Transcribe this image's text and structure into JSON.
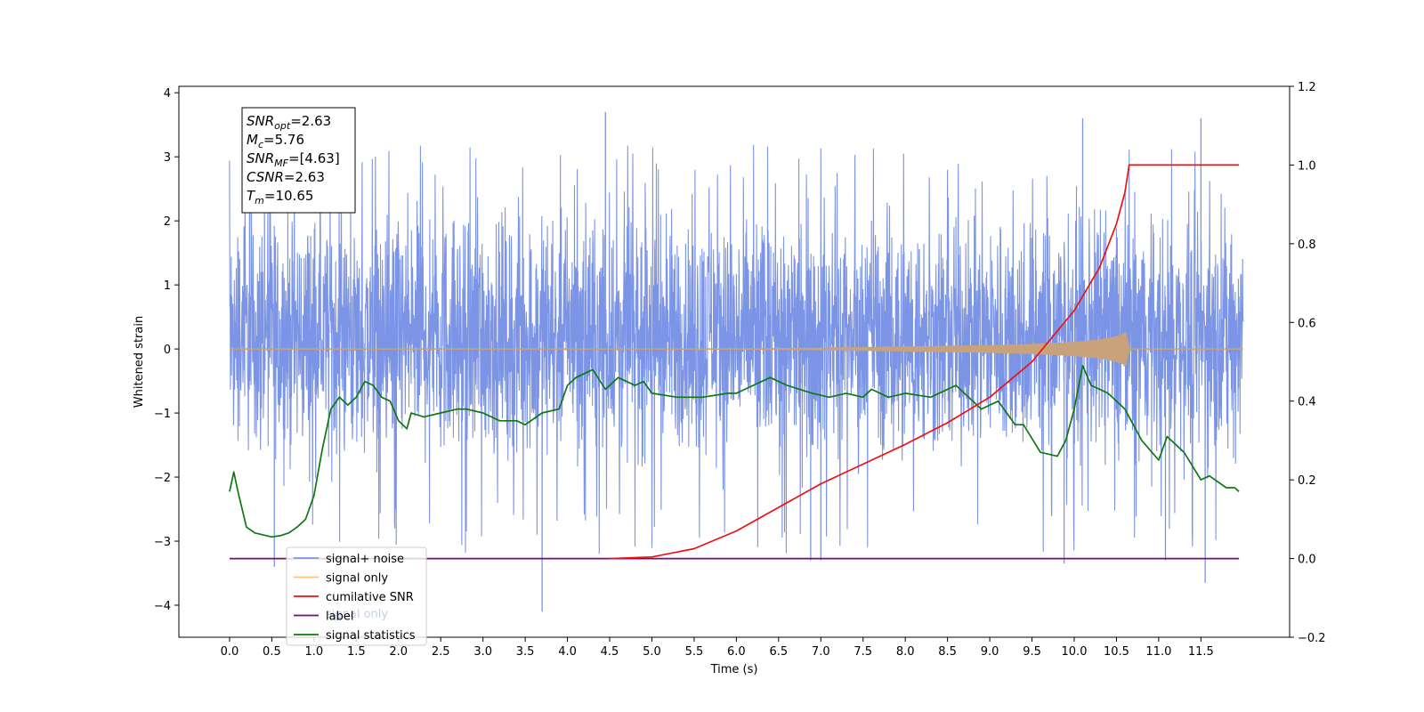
{
  "chart_data": {
    "type": "line",
    "title": "",
    "xlabel": "Time (s)",
    "ylabel": "Whitened strain",
    "xlim": [
      -0.6,
      12.55
    ],
    "ylim": [
      -4.5,
      4.1
    ],
    "y2lim": [
      -0.2,
      1.2
    ],
    "x_ticks": [
      0.0,
      0.5,
      1.0,
      1.5,
      2.0,
      2.5,
      3.0,
      3.5,
      4.0,
      4.5,
      5.0,
      5.5,
      6.0,
      6.5,
      7.0,
      7.5,
      8.0,
      8.5,
      9.0,
      9.5,
      10.0,
      10.5,
      11.0,
      11.5
    ],
    "x_tick_labels": [
      "0.0",
      "0.5",
      "1.0",
      "1.5",
      "2.0",
      "2.5",
      "3.0",
      "3.5",
      "4.0",
      "4.5",
      "5.0",
      "5.5",
      "6.0",
      "6.5",
      "7.0",
      "7.5",
      "8.0",
      "8.5",
      "9.0",
      "9.5",
      "10.0",
      "10.5",
      "11.0",
      "11.5"
    ],
    "y_ticks": [
      -4,
      -3,
      -2,
      -1,
      0,
      1,
      2,
      3,
      4
    ],
    "y_tick_labels": [
      "−4",
      "−3",
      "−2",
      "−1",
      "0",
      "1",
      "2",
      "3",
      "4"
    ],
    "y2_ticks": [
      -0.2,
      0.0,
      0.2,
      0.4,
      0.6,
      0.8,
      1.0,
      1.2
    ],
    "y2_tick_labels": [
      "−0.2",
      "0.0",
      "0.2",
      "0.4",
      "0.6",
      "0.8",
      "1.0",
      "1.2"
    ],
    "grid": false,
    "legend_position": "lower-left",
    "legend_overlap_text": "signal only",
    "annotation": {
      "lines": [
        {
          "base": "SNR",
          "sub": "opt",
          "value": "=2.63"
        },
        {
          "base": "M",
          "sub": "c",
          "value": "=5.76"
        },
        {
          "base": "SNR",
          "sub": "MF",
          "value": "=[4.63]"
        },
        {
          "base": "CSNR",
          "sub": "",
          "value": "=2.63"
        },
        {
          "base": "T",
          "sub": "m",
          "value": "=10.65"
        }
      ]
    },
    "series": [
      {
        "name": "signal+ noise",
        "color": "#7b94e6",
        "axis": "left",
        "kind": "noise",
        "x_range": [
          0.0,
          12.0
        ],
        "typical_range": [
          -1.9,
          2.3
        ],
        "peaks": [
          [
            4.45,
            3.7
          ],
          [
            10.1,
            3.6
          ],
          [
            11.5,
            3.6
          ],
          [
            3.7,
            -4.1
          ],
          [
            11.55,
            -3.65
          ],
          [
            0.53,
            -3.4
          ],
          [
            9.88,
            -3.35
          ],
          [
            11.08,
            -3.3
          ],
          [
            6.88,
            -3.3
          ],
          [
            7.0,
            -3.3
          ]
        ]
      },
      {
        "name": "signal only",
        "color": "#c8a27a",
        "axis": "left",
        "kind": "envelope",
        "x": [
          0.0,
          5.0,
          6.0,
          7.0,
          8.0,
          9.0,
          9.5,
          10.0,
          10.3,
          10.5,
          10.6,
          10.65,
          10.66,
          12.0
        ],
        "amplitude": [
          0.0,
          0.005,
          0.01,
          0.02,
          0.04,
          0.06,
          0.08,
          0.11,
          0.15,
          0.2,
          0.25,
          0.3,
          0.0,
          0.0
        ]
      },
      {
        "name": "cumilative SNR",
        "color": "#ee1111",
        "axis": "right",
        "x": [
          4.5,
          5.0,
          5.5,
          6.0,
          6.5,
          7.0,
          7.5,
          8.0,
          8.5,
          9.0,
          9.5,
          10.0,
          10.3,
          10.5,
          10.6,
          10.65,
          11.95
        ],
        "y": [
          0.0,
          0.004,
          0.025,
          0.07,
          0.13,
          0.19,
          0.24,
          0.29,
          0.345,
          0.41,
          0.5,
          0.63,
          0.74,
          0.85,
          0.93,
          1.0,
          1.0
        ]
      },
      {
        "name": "label",
        "color": "#7a0a7a",
        "axis": "right",
        "x": [
          0.0,
          11.95
        ],
        "y": [
          0.0,
          0.0
        ]
      },
      {
        "name": "signal statistics",
        "color": "#117711",
        "axis": "right",
        "x": [
          0.0,
          0.05,
          0.1,
          0.2,
          0.3,
          0.5,
          0.6,
          0.7,
          0.8,
          0.9,
          1.0,
          1.1,
          1.2,
          1.3,
          1.4,
          1.5,
          1.6,
          1.7,
          1.8,
          1.9,
          2.0,
          2.1,
          2.15,
          2.3,
          2.5,
          2.7,
          2.8,
          3.0,
          3.2,
          3.4,
          3.5,
          3.7,
          3.9,
          4.0,
          4.1,
          4.3,
          4.45,
          4.6,
          4.8,
          4.9,
          5.0,
          5.3,
          5.6,
          5.9,
          6.0,
          6.2,
          6.4,
          6.6,
          6.9,
          7.1,
          7.3,
          7.5,
          7.6,
          7.8,
          8.0,
          8.3,
          8.6,
          8.7,
          8.9,
          9.1,
          9.3,
          9.4,
          9.6,
          9.8,
          9.9,
          10.0,
          10.1,
          10.2,
          10.3,
          10.4,
          10.6,
          10.8,
          11.0,
          11.1,
          11.3,
          11.5,
          11.6,
          11.8,
          11.9,
          11.95
        ],
        "y": [
          0.17,
          0.22,
          0.17,
          0.08,
          0.065,
          0.055,
          0.058,
          0.065,
          0.08,
          0.1,
          0.16,
          0.28,
          0.38,
          0.41,
          0.39,
          0.41,
          0.45,
          0.44,
          0.41,
          0.4,
          0.35,
          0.33,
          0.37,
          0.36,
          0.37,
          0.38,
          0.38,
          0.37,
          0.35,
          0.35,
          0.34,
          0.37,
          0.38,
          0.44,
          0.46,
          0.48,
          0.43,
          0.46,
          0.44,
          0.45,
          0.42,
          0.41,
          0.41,
          0.42,
          0.42,
          0.44,
          0.46,
          0.44,
          0.42,
          0.41,
          0.42,
          0.41,
          0.43,
          0.41,
          0.42,
          0.41,
          0.44,
          0.42,
          0.38,
          0.4,
          0.34,
          0.34,
          0.27,
          0.26,
          0.3,
          0.38,
          0.49,
          0.44,
          0.43,
          0.42,
          0.38,
          0.3,
          0.25,
          0.31,
          0.27,
          0.2,
          0.21,
          0.18,
          0.18,
          0.17
        ]
      }
    ]
  }
}
